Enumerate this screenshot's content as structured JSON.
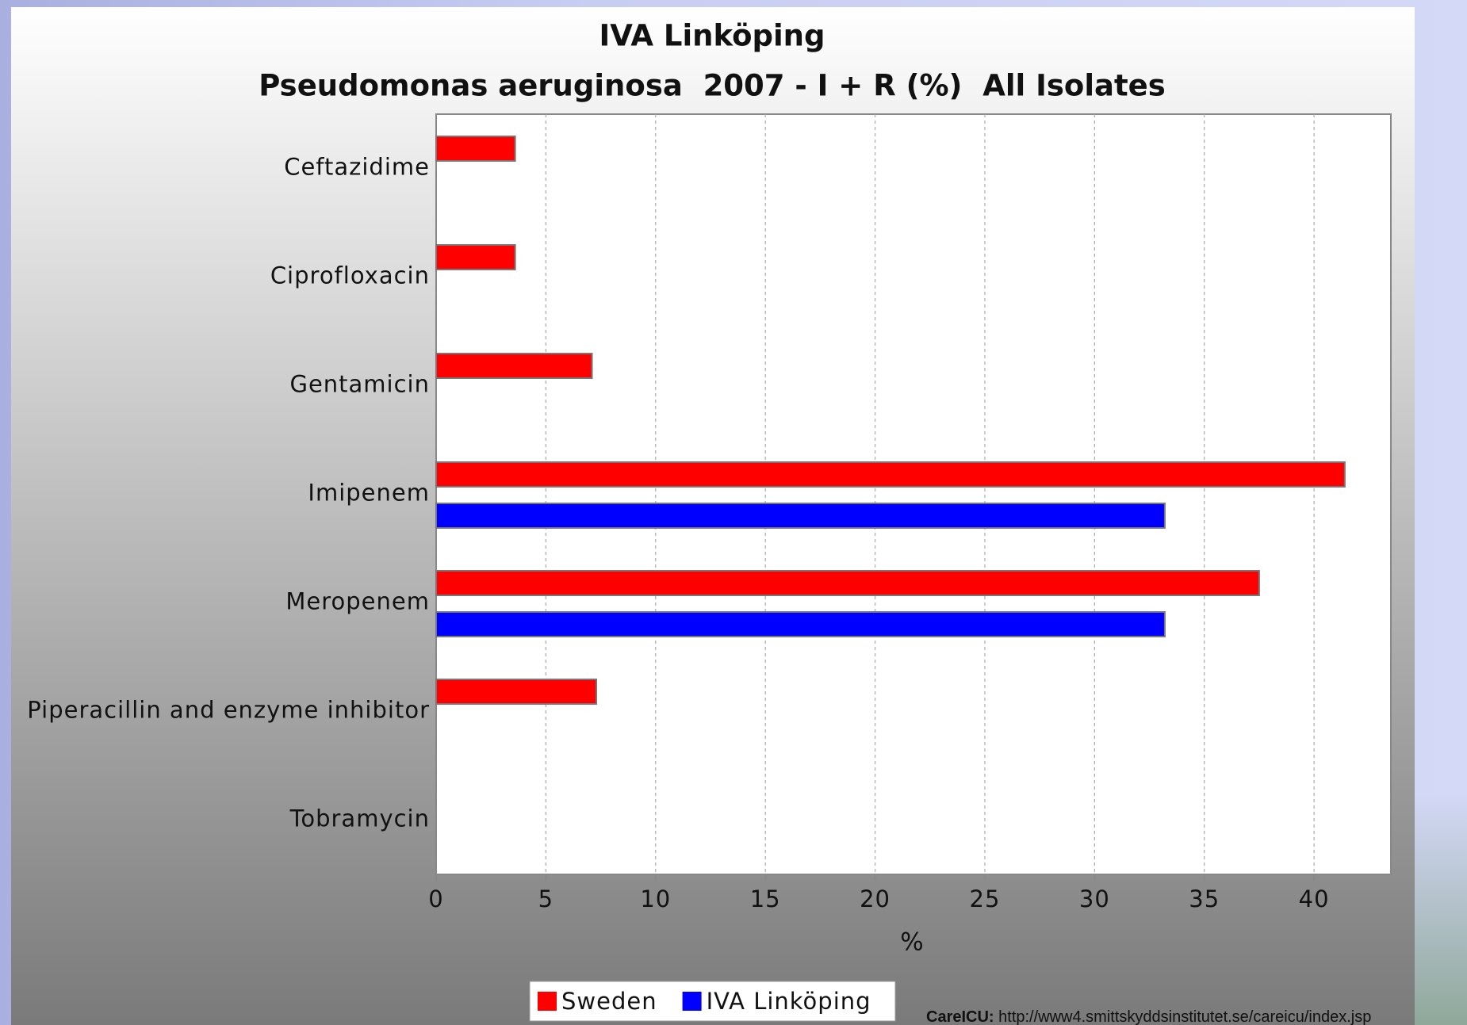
{
  "chart_data": {
    "type": "bar",
    "orientation": "horizontal",
    "title": "IVA Linköping",
    "subtitle": "Pseudomonas aeruginosa  2007 - I + R (%)  All Isolates",
    "xlabel": "%",
    "categories": [
      "Ceftazidime",
      "Ciprofloxacin",
      "Gentamicin",
      "Imipenem",
      "Meropenem",
      "Piperacillin and enzyme inhibitor",
      "Tobramycin"
    ],
    "series": [
      {
        "name": "Sweden",
        "color": "#ff0000",
        "values": [
          3.6,
          3.6,
          7.1,
          41.4,
          37.5,
          7.3,
          0
        ]
      },
      {
        "name": "IVA Linköping",
        "color": "#0000ff",
        "values": [
          0,
          0,
          0,
          33.2,
          33.2,
          0,
          0
        ]
      }
    ],
    "xlim": [
      0,
      43.5
    ],
    "xticks": [
      0,
      5,
      10,
      15,
      20,
      25,
      30,
      35,
      40
    ],
    "grid": true,
    "legend": "bottom"
  },
  "footer": {
    "label": "CareICU:",
    "url": "http://www4.smittskyddsinstitutet.se/careicu/index.jsp"
  }
}
